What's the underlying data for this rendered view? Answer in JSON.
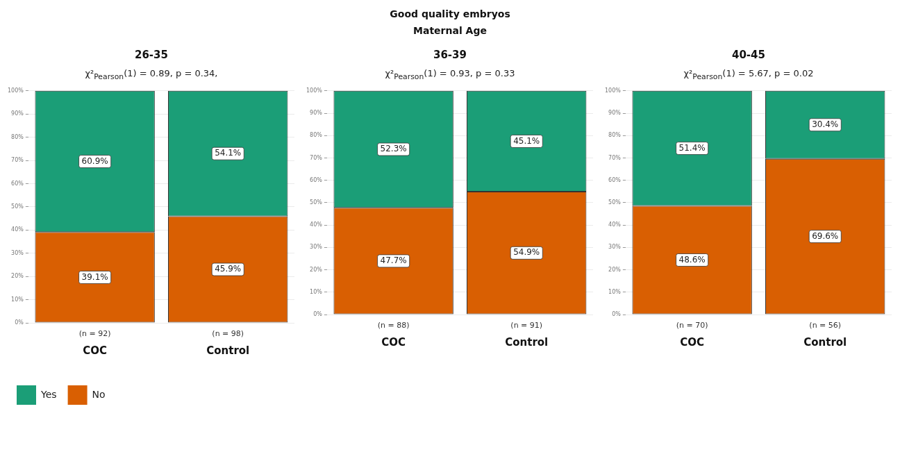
{
  "chart_data": [
    {
      "type": "other",
      "title": "Good quality embryos",
      "subtitle": "Maternal Age"
    },
    {
      "type": "bar",
      "title": "26-35",
      "subtitle": "χ²$_{Pearson}$(1) = 0.89, p = 0.34,",
      "categories": [
        "COC",
        "Control"
      ],
      "stacked": true,
      "series": [
        {
          "name": "No",
          "color": "#d95f02",
          "values": [
            39.1,
            45.9
          ],
          "value_labels": [
            "39.1%",
            "45.9%"
          ]
        },
        {
          "name": "Yes",
          "color": "#1b9e77",
          "values": [
            60.9,
            54.1
          ],
          "value_labels": [
            "60.9%",
            "54.1%"
          ]
        }
      ],
      "annotations": [
        "(n = 92)",
        "(n = 98)"
      ],
      "ylim": [
        0,
        100
      ],
      "yticks": [
        {
          "value": 0,
          "label": "0%"
        },
        {
          "value": 10,
          "label": "10%"
        },
        {
          "value": 20,
          "label": "20%"
        },
        {
          "value": 30,
          "label": "30%"
        },
        {
          "value": 40,
          "label": "40%"
        },
        {
          "value": 50,
          "label": "50%"
        },
        {
          "value": 60,
          "label": "60%"
        },
        {
          "value": 70,
          "label": "70%"
        },
        {
          "value": 80,
          "label": "80%"
        },
        {
          "value": 90,
          "label": "90%"
        },
        {
          "value": 100,
          "label": "100%"
        }
      ],
      "grid": "y",
      "legend": "bottom left"
    },
    {
      "type": "bar",
      "title": "36-39",
      "subtitle": "χ²$_{Pearson}$(1) = 0.93, p = 0.33",
      "categories": [
        "COC",
        "Control"
      ],
      "stacked": true,
      "series": [
        {
          "color": "#d95f02",
          "values": [
            47.7,
            54.9
          ],
          "value_labels": [
            "47.7%",
            "54.9%"
          ]
        },
        {
          "color": "#1b9e77",
          "values": [
            52.3,
            45.1
          ],
          "value_labels": [
            "52.3%",
            "45.1%"
          ]
        }
      ],
      "annotations": [
        "(n = 88)",
        "(n = 91)"
      ],
      "ylim": [
        0,
        100
      ],
      "yticks": [
        {
          "value": 0,
          "label": "0%"
        },
        {
          "value": 10,
          "label": "10%"
        },
        {
          "value": 20,
          "label": "20%"
        },
        {
          "value": 30,
          "label": "30%"
        },
        {
          "value": 40,
          "label": "40%"
        },
        {
          "value": 50,
          "label": "50%"
        },
        {
          "value": 60,
          "label": "60%"
        },
        {
          "value": 70,
          "label": "70%"
        },
        {
          "value": 80,
          "label": "80%"
        },
        {
          "value": 90,
          "label": "90%"
        },
        {
          "value": 100,
          "label": "100%"
        }
      ],
      "grid": "y"
    },
    {
      "type": "bar",
      "title": "40-45",
      "subtitle": "χ²$_{Pearson}$(1) = 5.67, p = 0.02",
      "categories": [
        "COC",
        "Control"
      ],
      "stacked": true,
      "series": [
        {
          "color": "#d95f02",
          "values": [
            48.6,
            69.6
          ],
          "value_labels": [
            "48.6%",
            "69.6%"
          ]
        },
        {
          "color": "#1b9e77",
          "values": [
            51.4,
            30.4
          ],
          "value_labels": [
            "51.4%",
            "30.4%"
          ]
        }
      ],
      "annotations": [
        "(n = 70)",
        "(n = 56)"
      ],
      "ylim": [
        0,
        100
      ],
      "yticks": [
        {
          "value": 0,
          "label": "0%"
        },
        {
          "value": 10,
          "label": "10%"
        },
        {
          "value": 20,
          "label": "20%"
        },
        {
          "value": 30,
          "label": "30%"
        },
        {
          "value": 40,
          "label": "40%"
        },
        {
          "value": 50,
          "label": "50%"
        },
        {
          "value": 60,
          "label": "60%"
        },
        {
          "value": 70,
          "label": "70%"
        },
        {
          "value": 80,
          "label": "80%"
        },
        {
          "value": 90,
          "label": "90%"
        },
        {
          "value": 100,
          "label": "100%"
        }
      ],
      "grid": "y"
    }
  ]
}
